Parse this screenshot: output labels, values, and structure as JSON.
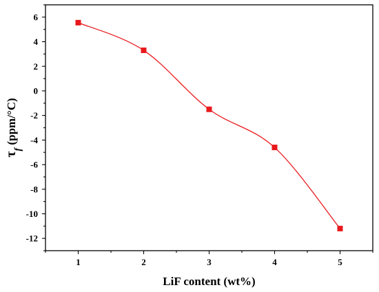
{
  "chart_data": {
    "type": "line",
    "x": [
      1,
      2,
      3,
      4,
      5
    ],
    "y": [
      5.55,
      3.3,
      -1.5,
      -4.6,
      -11.2
    ],
    "xlabel": "LiF content (wt%)",
    "ylabel_symbol": "τ",
    "ylabel_subscript": "f",
    "ylabel_unit": " (ppm/°C)",
    "xlim": [
      0.5,
      5.5
    ],
    "ylim": [
      -13,
      7
    ],
    "xticks": [
      "1",
      "2",
      "3",
      "4",
      "5"
    ],
    "yticks": [
      "6",
      "4",
      "2",
      "0",
      "-2",
      "-4",
      "-6",
      "-8",
      "-10",
      "-12"
    ],
    "ytick_values": [
      6,
      4,
      2,
      0,
      -2,
      -4,
      -6,
      -8,
      -10,
      -12
    ],
    "xtick_values": [
      1,
      2,
      3,
      4,
      5
    ],
    "grid": false,
    "line_color": "#e8181c",
    "marker": "square",
    "marker_color": "#e8181c"
  }
}
